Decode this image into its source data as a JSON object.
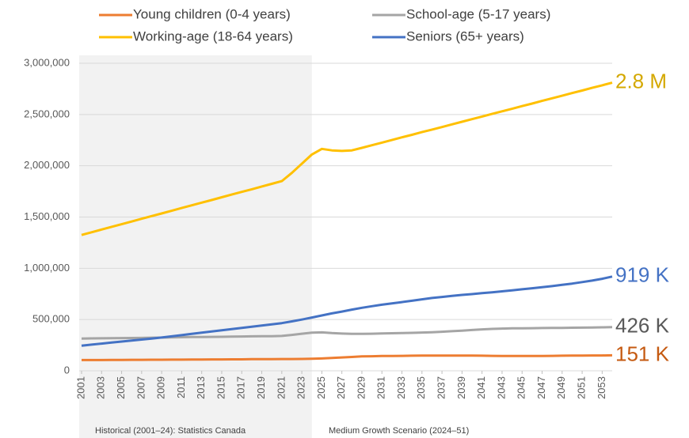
{
  "chart_data": {
    "type": "line",
    "x": [
      2001,
      2002,
      2003,
      2004,
      2005,
      2006,
      2007,
      2008,
      2009,
      2010,
      2011,
      2012,
      2013,
      2014,
      2015,
      2016,
      2017,
      2018,
      2019,
      2020,
      2021,
      2022,
      2023,
      2024,
      2025,
      2026,
      2027,
      2028,
      2029,
      2030,
      2031,
      2032,
      2033,
      2034,
      2035,
      2036,
      2037,
      2038,
      2039,
      2040,
      2041,
      2042,
      2043,
      2044,
      2045,
      2046,
      2047,
      2048,
      2049,
      2050,
      2051,
      2052,
      2053,
      2054
    ],
    "xlim": [
      2001,
      2054
    ],
    "xticks": [
      2001,
      2003,
      2005,
      2007,
      2009,
      2011,
      2013,
      2015,
      2017,
      2019,
      2021,
      2023,
      2025,
      2027,
      2029,
      2031,
      2033,
      2035,
      2037,
      2039,
      2041,
      2043,
      2045,
      2047,
      2049,
      2051,
      2053
    ],
    "ylim": [
      0,
      3000000
    ],
    "yticks": [
      0,
      {
        "value": 500000,
        "label": "500,000"
      },
      {
        "value": 1000000,
        "label": "1,000,000"
      },
      {
        "value": 1500000,
        "label": "1,500,000"
      },
      {
        "value": 2000000,
        "label": "2,000,000"
      },
      {
        "value": 2500000,
        "label": "2,500,000"
      },
      {
        "value": 3000000,
        "label": "3,000,000"
      }
    ],
    "grid": true,
    "legend": "top",
    "shaded_range": [
      2001,
      2024
    ],
    "annotations": [
      "Historical (2001–24): Statistics Canada",
      "Medium Growth Scenario (2024–51)"
    ],
    "series": [
      {
        "name": "Young children (0-4 years)",
        "color": "#ED7D31",
        "label_color": "#C55A11",
        "end_label": "151 K",
        "values": [
          105000,
          105000,
          105000,
          106000,
          106000,
          107000,
          107000,
          108000,
          108000,
          109000,
          109000,
          110000,
          110000,
          111000,
          111000,
          112000,
          112000,
          113000,
          113000,
          114000,
          115000,
          115000,
          116000,
          117000,
          120000,
          125000,
          130000,
          135000,
          140000,
          142000,
          144000,
          145000,
          146000,
          147000,
          148000,
          148000,
          148000,
          148000,
          148000,
          148000,
          147000,
          146000,
          145000,
          145000,
          145000,
          145000,
          145000,
          146000,
          147000,
          148000,
          149000,
          150000,
          150000,
          151000
        ]
      },
      {
        "name": "School-age (5-17 years)",
        "color": "#A5A5A5",
        "label_color": "#595959",
        "end_label": "426 K",
        "values": [
          315000,
          316000,
          317000,
          318000,
          319000,
          320000,
          321000,
          323000,
          324000,
          326000,
          328000,
          329000,
          330000,
          331000,
          332000,
          333000,
          335000,
          336000,
          337000,
          338000,
          340000,
          350000,
          362000,
          372000,
          375000,
          368000,
          363000,
          360000,
          360000,
          362000,
          364000,
          366000,
          368000,
          370000,
          373000,
          376000,
          381000,
          386000,
          392000,
          398000,
          404000,
          409000,
          412000,
          414000,
          415000,
          416000,
          417000,
          418000,
          419000,
          420000,
          421000,
          422000,
          424000,
          426000
        ]
      },
      {
        "name": "Working-age (18-64 years)",
        "color": "#FFC000",
        "label_color": "#D4A800",
        "end_label": "2.8 M",
        "values": [
          1325000,
          1351000,
          1378000,
          1404000,
          1430000,
          1456000,
          1483000,
          1509000,
          1535000,
          1561000,
          1588000,
          1614000,
          1640000,
          1666000,
          1693000,
          1719000,
          1745000,
          1771000,
          1798000,
          1824000,
          1850000,
          1930000,
          2020000,
          2110000,
          2165000,
          2150000,
          2145000,
          2150000,
          2175000,
          2200000,
          2226000,
          2251000,
          2277000,
          2302000,
          2328000,
          2353000,
          2378000,
          2404000,
          2429000,
          2455000,
          2480000,
          2506000,
          2531000,
          2556000,
          2582000,
          2607000,
          2633000,
          2658000,
          2683000,
          2709000,
          2734000,
          2760000,
          2785000,
          2810000
        ]
      },
      {
        "name": "Seniors (65+ years)",
        "color": "#4472C4",
        "label_color": "#4472C4",
        "end_label": "919 K",
        "values": [
          245000,
          255000,
          265000,
          275000,
          285000,
          295000,
          305000,
          315000,
          325000,
          336000,
          348000,
          360000,
          372000,
          384000,
          396000,
          407000,
          418000,
          430000,
          442000,
          453000,
          465000,
          482000,
          500000,
          520000,
          540000,
          560000,
          578000,
          597000,
          615000,
          630000,
          645000,
          657000,
          670000,
          683000,
          697000,
          710000,
          720000,
          730000,
          740000,
          748000,
          757000,
          766000,
          775000,
          785000,
          795000,
          805000,
          815000,
          826000,
          838000,
          851000,
          865000,
          880000,
          898000,
          919000
        ]
      }
    ]
  }
}
